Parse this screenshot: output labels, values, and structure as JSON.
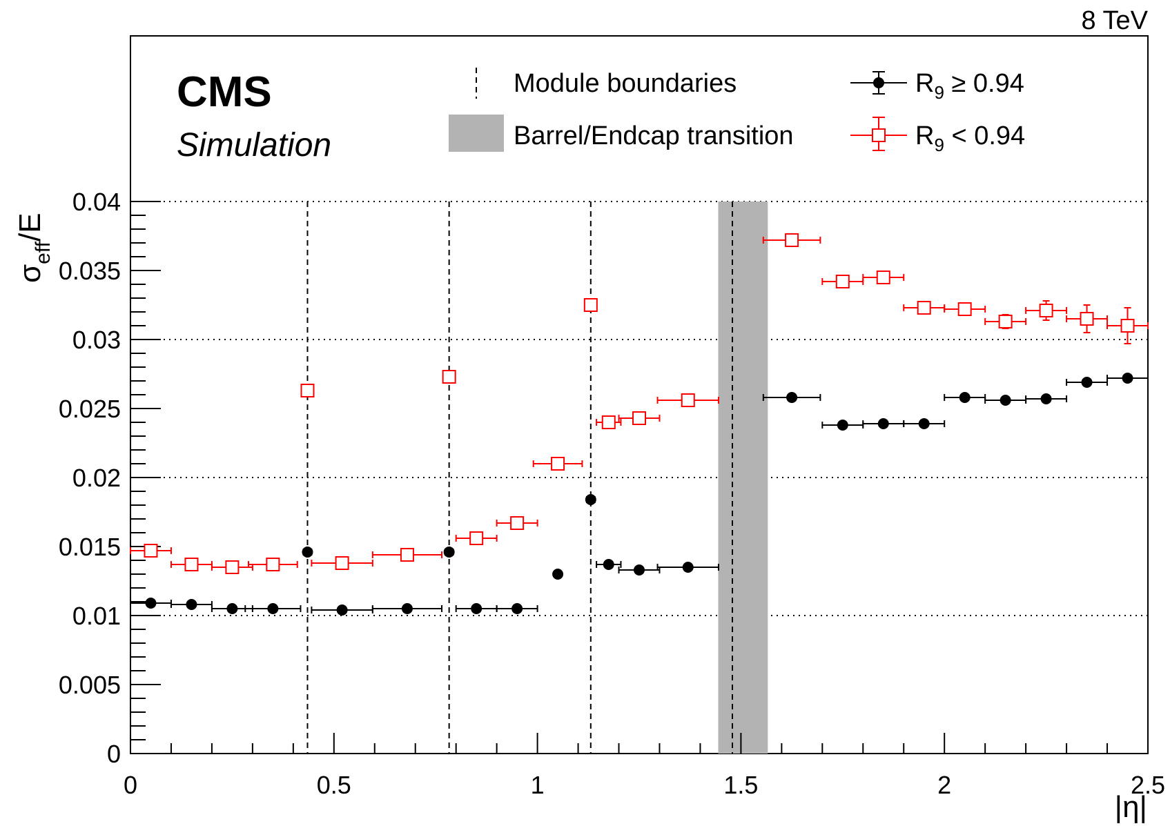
{
  "energy_label": "8 TeV",
  "experiment_label": "CMS",
  "status_label": "Simulation",
  "legend": {
    "module_boundaries": "Module boundaries",
    "transition": "Barrel/Endcap transition",
    "series1_main": "R",
    "series1_sub": "9",
    "series1_rest": " ≥ 0.94",
    "series2_main": "R",
    "series2_sub": "9",
    "series2_rest": " < 0.94"
  },
  "axes": {
    "x_title": "|η|",
    "y_title_main": "σ",
    "y_title_sub": "eff",
    "y_title_rest": "/E"
  },
  "colors": {
    "series1": "#000000",
    "series2": "#ff0000",
    "transition_band": "#b3b3b3"
  },
  "chart_data": {
    "type": "scatter",
    "title": "",
    "xlabel": "|η|",
    "ylabel": "σeff/E",
    "xlim": [
      0,
      2.5
    ],
    "ylim": [
      0,
      0.04
    ],
    "x_ticks": [
      "0",
      "0.5",
      "1",
      "1.5",
      "2",
      "2.5"
    ],
    "y_ticks": [
      "0",
      "0.005",
      "0.01",
      "0.015",
      "0.02",
      "0.025",
      "0.03",
      "0.035",
      "0.04"
    ],
    "grid": "dotted horizontal at 0.01, 0.02, 0.03, 0.04",
    "module_boundaries": [
      0.435,
      0.783,
      1.131,
      1.479
    ],
    "transition_band": [
      1.4442,
      1.566
    ],
    "series": [
      {
        "name": "R9 ≥ 0.94",
        "marker": "filled-circle",
        "points": [
          {
            "x": 0.05,
            "xerr": 0.05,
            "y": 0.0109
          },
          {
            "x": 0.15,
            "xerr": 0.05,
            "y": 0.0108
          },
          {
            "x": 0.25,
            "xerr": 0.05,
            "y": 0.0105
          },
          {
            "x": 0.35,
            "xerr": 0.068,
            "y": 0.0105
          },
          {
            "x": 0.435,
            "xerr": 0.01,
            "y": 0.0146
          },
          {
            "x": 0.52,
            "xerr": 0.075,
            "y": 0.0104
          },
          {
            "x": 0.68,
            "xerr": 0.085,
            "y": 0.0105
          },
          {
            "x": 0.783,
            "xerr": 0.01,
            "y": 0.0146
          },
          {
            "x": 0.85,
            "xerr": 0.05,
            "y": 0.0105
          },
          {
            "x": 0.95,
            "xerr": 0.05,
            "y": 0.0105
          },
          {
            "x": 1.05,
            "xerr": 0.0,
            "y": 0.013
          },
          {
            "x": 1.131,
            "xerr": 0.01,
            "y": 0.0184
          },
          {
            "x": 1.175,
            "xerr": 0.03,
            "y": 0.0137
          },
          {
            "x": 1.25,
            "xerr": 0.05,
            "y": 0.0133
          },
          {
            "x": 1.37,
            "xerr": 0.075,
            "y": 0.0135
          },
          {
            "x": 1.625,
            "xerr": 0.07,
            "y": 0.0258
          },
          {
            "x": 1.75,
            "xerr": 0.05,
            "y": 0.0238
          },
          {
            "x": 1.85,
            "xerr": 0.05,
            "y": 0.0239
          },
          {
            "x": 1.95,
            "xerr": 0.05,
            "y": 0.0239
          },
          {
            "x": 2.05,
            "xerr": 0.05,
            "y": 0.0258
          },
          {
            "x": 2.15,
            "xerr": 0.05,
            "y": 0.0256
          },
          {
            "x": 2.25,
            "xerr": 0.05,
            "y": 0.0257
          },
          {
            "x": 2.35,
            "xerr": 0.05,
            "y": 0.0269
          },
          {
            "x": 2.45,
            "xerr": 0.05,
            "y": 0.0272
          }
        ]
      },
      {
        "name": "R9 < 0.94",
        "marker": "open-square",
        "points": [
          {
            "x": 0.05,
            "xerr": 0.05,
            "y": 0.0147,
            "yerr": 0.0001
          },
          {
            "x": 0.15,
            "xerr": 0.05,
            "y": 0.0137,
            "yerr": 0.0001
          },
          {
            "x": 0.25,
            "xerr": 0.05,
            "y": 0.0135,
            "yerr": 0.0001
          },
          {
            "x": 0.35,
            "xerr": 0.06,
            "y": 0.0137,
            "yerr": 0.0001
          },
          {
            "x": 0.435,
            "xerr": 0.01,
            "y": 0.0263,
            "yerr": 0.0003
          },
          {
            "x": 0.52,
            "xerr": 0.075,
            "y": 0.0138,
            "yerr": 0.0001
          },
          {
            "x": 0.68,
            "xerr": 0.085,
            "y": 0.0144,
            "yerr": 0.0001
          },
          {
            "x": 0.783,
            "xerr": 0.01,
            "y": 0.0273,
            "yerr": 0.0003
          },
          {
            "x": 0.85,
            "xerr": 0.05,
            "y": 0.0156,
            "yerr": 0.0001
          },
          {
            "x": 0.95,
            "xerr": 0.05,
            "y": 0.0167,
            "yerr": 0.0001
          },
          {
            "x": 1.05,
            "xerr": 0.06,
            "y": 0.021,
            "yerr": 0.0002
          },
          {
            "x": 1.131,
            "xerr": 0.01,
            "y": 0.0325,
            "yerr": 0.0003
          },
          {
            "x": 1.175,
            "xerr": 0.03,
            "y": 0.024,
            "yerr": 0.0002
          },
          {
            "x": 1.25,
            "xerr": 0.05,
            "y": 0.0243,
            "yerr": 0.0002
          },
          {
            "x": 1.37,
            "xerr": 0.075,
            "y": 0.0256,
            "yerr": 0.0002
          },
          {
            "x": 1.625,
            "xerr": 0.07,
            "y": 0.0372,
            "yerr": 0.0002
          },
          {
            "x": 1.75,
            "xerr": 0.05,
            "y": 0.0342,
            "yerr": 0.0002
          },
          {
            "x": 1.85,
            "xerr": 0.05,
            "y": 0.0345,
            "yerr": 0.0003
          },
          {
            "x": 1.95,
            "xerr": 0.05,
            "y": 0.0323,
            "yerr": 0.0003
          },
          {
            "x": 2.05,
            "xerr": 0.05,
            "y": 0.0322,
            "yerr": 0.0004
          },
          {
            "x": 2.15,
            "xerr": 0.05,
            "y": 0.0313,
            "yerr": 0.0005
          },
          {
            "x": 2.25,
            "xerr": 0.05,
            "y": 0.0321,
            "yerr": 0.0007
          },
          {
            "x": 2.35,
            "xerr": 0.05,
            "y": 0.0315,
            "yerr": 0.001
          },
          {
            "x": 2.45,
            "xerr": 0.05,
            "y": 0.031,
            "yerr": 0.0013
          }
        ]
      }
    ]
  }
}
